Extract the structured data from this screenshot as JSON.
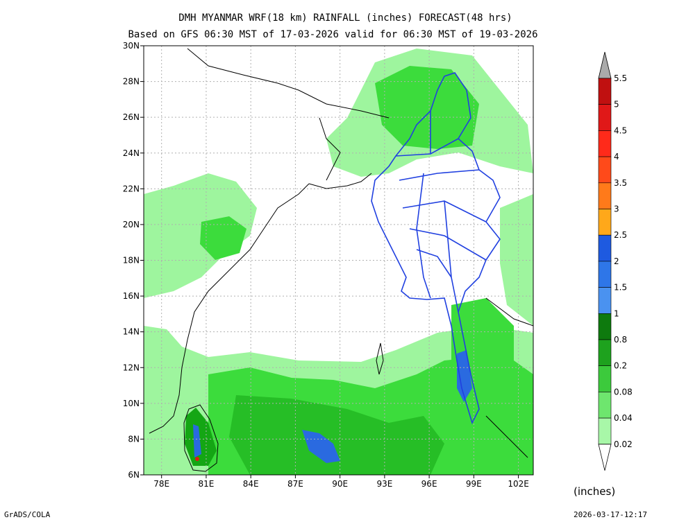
{
  "header": {
    "title": "DMH MYANMAR WRF(18 km) RAINFALL (inches) FORECAST(48 hrs)",
    "subtitle": "Based on GFS 06:30 MST of 17-03-2026 valid for 06:30 MST of 19-03-2026"
  },
  "map": {
    "lon_labels": [
      "78E",
      "81E",
      "84E",
      "87E",
      "90E",
      "93E",
      "96E",
      "99E",
      "102E"
    ],
    "lat_labels": [
      "6N",
      "8N",
      "10N",
      "12N",
      "14N",
      "16N",
      "18N",
      "20N",
      "22N",
      "24N",
      "26N",
      "28N",
      "30N"
    ],
    "lon_range": [
      76.8,
      103.0
    ],
    "lat_range": [
      6,
      30
    ],
    "rain_colors": {
      "light": "#9ef59e",
      "medium": "#3cdc3c",
      "heavy": "#14a614",
      "very_heavy": "#2a6ae0"
    },
    "boundary_colors": {
      "coast": "#000000",
      "myanmar": "#2040e0"
    }
  },
  "legend": {
    "labels": [
      "5.5",
      "5",
      "4.5",
      "4",
      "3.5",
      "3",
      "2.5",
      "2",
      "1.5",
      "1",
      "0.8",
      "0.2",
      "0.08",
      "0.04",
      "0.02"
    ],
    "colors": [
      "#aaaaaa",
      "#c01010",
      "#e01818",
      "#ff2a1a",
      "#ff4a1a",
      "#ff7a1a",
      "#ffa81a",
      "#1e5ae0",
      "#2e76e8",
      "#4a92f0",
      "#0e7a0e",
      "#1ea21e",
      "#3cca3c",
      "#6ee66e",
      "#a8f7a8"
    ],
    "unit": "(inches)"
  },
  "footer": {
    "credit": "GrADS/COLA",
    "timestamp": "2026-03-17-12:17"
  }
}
